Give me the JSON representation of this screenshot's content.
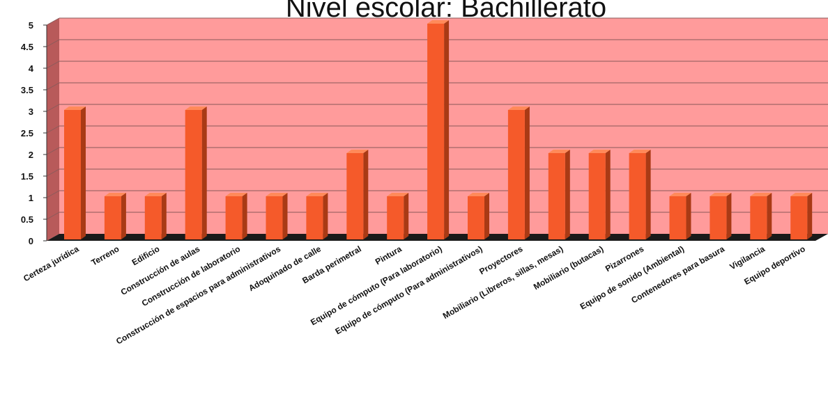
{
  "chart_data": {
    "type": "bar",
    "title": "Nivel escolar: Bachillerato",
    "xlabel": "",
    "ylabel": "",
    "ylim": [
      0,
      5
    ],
    "yticks": [
      0,
      0.5,
      1,
      1.5,
      2,
      2.5,
      3,
      3.5,
      4,
      4.5,
      5
    ],
    "grid": true,
    "legend": "none",
    "categories": [
      "Certeza jurídica",
      "Terreno",
      "Edificio",
      "Construcción de aulas",
      "Construcción de laboratorio",
      "Construcción de espacios para administrativos",
      "Adoquinado de calle",
      "Barda perimetral",
      "Pintura",
      "Equipo de cómputo (Para laboratorio)",
      "Equipo de cómputo (Para administrativos)",
      "Proyectores",
      "Mobiliario (Libreros, sillas, mesas)",
      "Mobiliario (butacas)",
      "Pizarrones",
      "Equipo de sonido (Ambiental)",
      "Contenedores para basura",
      "Vigilancia",
      "Equipo deportivo"
    ],
    "values": [
      3,
      1,
      1,
      3,
      1,
      1,
      1,
      2,
      1,
      5,
      1,
      3,
      2,
      2,
      2,
      1,
      1,
      1,
      1
    ]
  },
  "colors": {
    "plot_background": "#ff9b9b",
    "side_wall": "#b85a5a",
    "floor": "#1a1a1a",
    "bar_front": "#f55a2a",
    "bar_side": "#a93a15",
    "bar_top": "#ff8a5a",
    "gridline": "#8a5a5a"
  }
}
